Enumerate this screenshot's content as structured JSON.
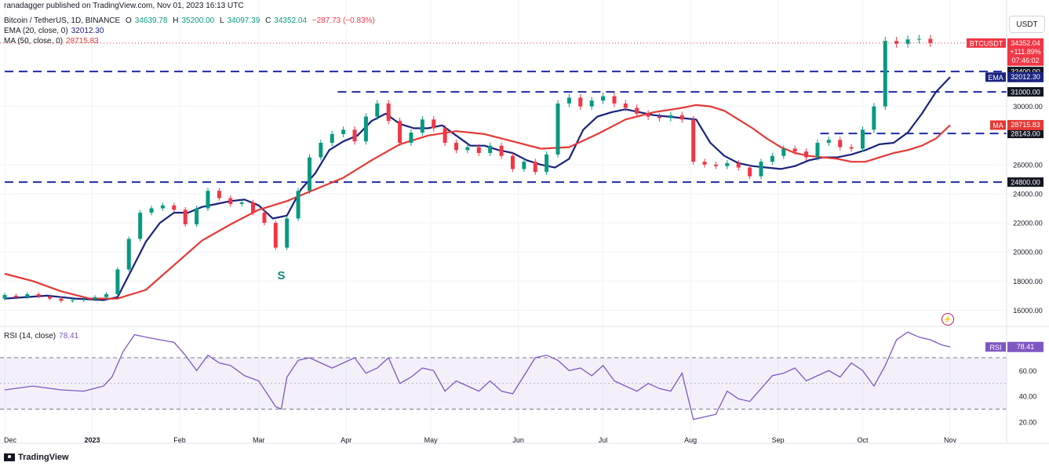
{
  "header": {
    "publisher": "ranadagger published on TradingView.com, Nov 01, 2023 16:13 UTC",
    "symbol": "Bitcoin / TetherUS, 1D, BINANCE",
    "o_label": "O",
    "o_value": "34639.78",
    "h_label": "H",
    "h_value": "35200.00",
    "l_label": "L",
    "l_value": "34097.39",
    "c_label": "C",
    "c_value": "34352.04",
    "change": "−287.73 (−0.83%)",
    "ema_label": "EMA (20, close, 0)",
    "ema_value": "32012.30",
    "ma_label": "MA (50, close, 0)",
    "ma_value": "28715.83",
    "rsi_label": "RSI (14, close)",
    "rsi_value": "78.41"
  },
  "currency_button": "USDT",
  "brand": "TradingView",
  "chart_data": {
    "type": "line",
    "title": "Bitcoin / TetherUS, 1D, BINANCE",
    "price_axis": {
      "ticks": [
        "30000.00",
        "26000.00",
        "24000.00",
        "22000.00",
        "20000.00",
        "18000.00",
        "16000.00"
      ],
      "range": [
        15000,
        35800
      ]
    },
    "rsi_axis": {
      "ticks": [
        "60.00",
        "40.00",
        "20.00"
      ],
      "range": [
        12,
        92
      ],
      "bands": [
        30,
        50,
        70
      ]
    },
    "x_labels": [
      "Dec",
      "2023",
      "Feb",
      "Mar",
      "Apr",
      "May",
      "Jun",
      "Jul",
      "Aug",
      "Sep",
      "Oct",
      "Nov"
    ],
    "x_label_days": [
      0,
      31,
      62,
      90,
      121,
      151,
      182,
      212,
      243,
      274,
      304,
      335
    ],
    "horizontal_levels": [
      {
        "value": 32400,
        "label": "32400.00",
        "x_start_day": 0
      },
      {
        "value": 31000,
        "label": "31000.00",
        "x_start_day": 118
      },
      {
        "value": 28143,
        "label": "28143.00",
        "x_start_day": 289
      },
      {
        "value": 24800,
        "label": "24800.00",
        "x_start_day": 0
      }
    ],
    "badges": [
      {
        "name": "price",
        "label": "BTCUSDT",
        "lines": [
          "34352.04",
          "+111.89%",
          "07:46:02"
        ],
        "value": 34352.04,
        "color": "#f23645"
      },
      {
        "name": "ema",
        "label": "EMA",
        "lines": [
          "32012.30"
        ],
        "value": 32012.3,
        "color": "#1a237e"
      },
      {
        "name": "ma",
        "label": "MA",
        "lines": [
          "28715.83"
        ],
        "value": 28715.83,
        "color": "#e53935"
      },
      {
        "name": "rsi",
        "label": "RSI",
        "lines": [
          "78.41"
        ],
        "value": 78.41,
        "color": "#7e57c2"
      }
    ],
    "annotation": {
      "text": "S",
      "day": 98,
      "price": 19300,
      "color": "#0d8a80"
    },
    "price_series": [
      {
        "name": "BTCUSDT",
        "color": "#089981",
        "days": [
          0,
          15,
          20,
          25,
          35,
          40,
          45,
          50,
          55,
          60,
          65,
          70,
          75,
          80,
          85,
          90,
          95,
          97,
          100,
          105,
          110,
          115,
          120,
          125,
          130,
          135,
          140,
          145,
          150,
          155,
          160,
          165,
          170,
          175,
          180,
          185,
          190,
          195,
          200,
          205,
          210,
          215,
          220,
          225,
          230,
          235,
          240,
          245,
          250,
          255,
          260,
          265,
          270,
          275,
          280,
          285,
          290,
          295,
          300,
          305,
          310,
          315,
          320,
          325,
          330,
          335
        ],
        "values": [
          16900,
          17000,
          16700,
          16700,
          16800,
          17100,
          21000,
          22800,
          23000,
          23100,
          22000,
          23500,
          24600,
          23200,
          23200,
          23000,
          22000,
          20600,
          22000,
          25000,
          26200,
          27900,
          28300,
          27100,
          29700,
          30400,
          29000,
          27300,
          28000,
          28900,
          28000,
          26800,
          27200,
          26900,
          27100,
          25800,
          25700,
          25200,
          27000,
          30500,
          30500,
          30600,
          30200,
          29900,
          29400,
          29100,
          29100,
          29400,
          29200,
          26000,
          26100,
          26000,
          25800,
          25200,
          26400,
          26600,
          27000,
          26200,
          27300,
          27500,
          27000,
          28500,
          30000,
          34600,
          34300,
          34352
        ]
      },
      {
        "name": "EMA (20, close, 0)",
        "color": "#1a237e",
        "days": [
          0,
          15,
          20,
          25,
          35,
          40,
          45,
          50,
          55,
          60,
          65,
          70,
          75,
          80,
          85,
          90,
          95,
          100,
          105,
          110,
          115,
          120,
          125,
          130,
          135,
          140,
          145,
          150,
          155,
          160,
          165,
          170,
          175,
          180,
          185,
          190,
          195,
          200,
          205,
          210,
          215,
          220,
          225,
          230,
          235,
          240,
          245,
          250,
          255,
          260,
          265,
          270,
          275,
          280,
          285,
          290,
          295,
          300,
          305,
          310,
          315,
          320,
          325,
          330,
          335
        ],
        "values": [
          16800,
          17000,
          16900,
          16800,
          16700,
          16900,
          18800,
          20700,
          22000,
          22700,
          22700,
          23100,
          23300,
          23500,
          23600,
          23200,
          22300,
          22500,
          24300,
          25400,
          27000,
          27600,
          28000,
          29000,
          29500,
          28800,
          28500,
          28500,
          28700,
          28000,
          27300,
          27300,
          27000,
          26800,
          26300,
          26000,
          25800,
          26400,
          28400,
          29300,
          29600,
          29800,
          29600,
          29400,
          29300,
          29200,
          29100,
          27500,
          26600,
          26100,
          25900,
          25800,
          25700,
          25900,
          26300,
          26500,
          26500,
          26700,
          27000,
          27400,
          27500,
          28200,
          29500,
          31000,
          32012
        ]
      },
      {
        "name": "MA (50, close, 0)",
        "color": "#e53935",
        "days": [
          0,
          10,
          20,
          30,
          40,
          50,
          60,
          70,
          80,
          90,
          100,
          110,
          120,
          130,
          140,
          150,
          160,
          170,
          180,
          190,
          200,
          210,
          220,
          230,
          240,
          245,
          250,
          255,
          260,
          265,
          270,
          275,
          280,
          285,
          290,
          295,
          300,
          305,
          310,
          315,
          320,
          325,
          330,
          335
        ],
        "values": [
          18500,
          18000,
          17300,
          16800,
          16800,
          17400,
          19100,
          20800,
          21900,
          22900,
          23500,
          24300,
          25100,
          26300,
          27400,
          28000,
          28300,
          28100,
          27600,
          27100,
          27200,
          28100,
          29100,
          29600,
          29900,
          30100,
          30000,
          29700,
          29100,
          28500,
          27800,
          27200,
          26800,
          26600,
          26500,
          26400,
          26200,
          26200,
          26500,
          26800,
          27000,
          27300,
          27800,
          28716
        ]
      }
    ],
    "candles": [
      [
        0,
        16800,
        17050
      ],
      [
        4,
        17000,
        16900
      ],
      [
        8,
        16900,
        17100
      ],
      [
        12,
        17100,
        16950
      ],
      [
        16,
        16950,
        16800
      ],
      [
        20,
        16800,
        16650
      ],
      [
        24,
        16650,
        16700
      ],
      [
        28,
        16700,
        16750
      ],
      [
        32,
        16750,
        16900
      ],
      [
        36,
        16900,
        17100
      ],
      [
        40,
        17100,
        18800
      ],
      [
        44,
        18800,
        20900
      ],
      [
        48,
        20900,
        22700
      ],
      [
        52,
        22700,
        23000
      ],
      [
        56,
        23000,
        23200
      ],
      [
        60,
        23200,
        22900
      ],
      [
        64,
        22900,
        21900
      ],
      [
        68,
        21900,
        23000
      ],
      [
        72,
        23000,
        24200
      ],
      [
        76,
        24200,
        23700
      ],
      [
        80,
        23700,
        23300
      ],
      [
        84,
        23300,
        23400
      ],
      [
        88,
        23400,
        22700
      ],
      [
        92,
        22700,
        22000
      ],
      [
        96,
        22000,
        20300
      ],
      [
        100,
        20300,
        22300
      ],
      [
        104,
        22300,
        24200
      ],
      [
        108,
        24200,
        26500
      ],
      [
        112,
        26500,
        27500
      ],
      [
        116,
        27500,
        28100
      ],
      [
        120,
        28100,
        28400
      ],
      [
        124,
        28400,
        27600
      ],
      [
        128,
        27600,
        29300
      ],
      [
        132,
        29300,
        30200
      ],
      [
        136,
        30200,
        29000
      ],
      [
        140,
        29000,
        27500
      ],
      [
        144,
        27500,
        28200
      ],
      [
        148,
        28200,
        29100
      ],
      [
        152,
        29100,
        28500
      ],
      [
        156,
        28500,
        27500
      ],
      [
        160,
        27500,
        27000
      ],
      [
        164,
        27000,
        27200
      ],
      [
        168,
        27200,
        26800
      ],
      [
        172,
        26800,
        27300
      ],
      [
        176,
        27300,
        26600
      ],
      [
        180,
        26600,
        25700
      ],
      [
        184,
        25700,
        26200
      ],
      [
        188,
        26200,
        25500
      ],
      [
        192,
        25500,
        26700
      ],
      [
        196,
        26700,
        30200
      ],
      [
        200,
        30200,
        30600
      ],
      [
        204,
        30600,
        30000
      ],
      [
        208,
        30000,
        30400
      ],
      [
        212,
        30400,
        30700
      ],
      [
        216,
        30700,
        30200
      ],
      [
        220,
        30200,
        29900
      ],
      [
        224,
        29900,
        29500
      ],
      [
        228,
        29500,
        29300
      ],
      [
        232,
        29300,
        29200
      ],
      [
        236,
        29200,
        29400
      ],
      [
        240,
        29400,
        29100
      ],
      [
        244,
        29100,
        26200
      ],
      [
        248,
        26200,
        26000
      ],
      [
        252,
        26000,
        25900
      ],
      [
        256,
        25900,
        26100
      ],
      [
        260,
        26100,
        25800
      ],
      [
        264,
        25800,
        25200
      ],
      [
        268,
        25200,
        26200
      ],
      [
        272,
        26200,
        26600
      ],
      [
        276,
        26600,
        27100
      ],
      [
        280,
        27100,
        26900
      ],
      [
        284,
        26900,
        26500
      ],
      [
        288,
        26500,
        27500
      ],
      [
        292,
        27500,
        27700
      ],
      [
        296,
        27700,
        27200
      ],
      [
        300,
        27200,
        27100
      ],
      [
        304,
        27100,
        28400
      ],
      [
        308,
        28400,
        30000
      ],
      [
        312,
        30000,
        34500
      ],
      [
        316,
        34500,
        34300
      ],
      [
        320,
        34300,
        34600
      ],
      [
        324,
        34600,
        34640
      ],
      [
        328,
        34640,
        34352
      ]
    ],
    "rsi_series": {
      "name": "RSI (14, close)",
      "color": "#7e57c2",
      "days": [
        0,
        10,
        20,
        28,
        35,
        38,
        42,
        46,
        50,
        55,
        60,
        64,
        68,
        72,
        76,
        80,
        85,
        90,
        96,
        98,
        100,
        104,
        108,
        112,
        116,
        120,
        124,
        128,
        132,
        136,
        140,
        144,
        148,
        152,
        156,
        160,
        164,
        168,
        172,
        176,
        180,
        184,
        188,
        192,
        196,
        200,
        204,
        208,
        212,
        216,
        220,
        224,
        228,
        232,
        236,
        240,
        244,
        248,
        252,
        256,
        260,
        264,
        268,
        272,
        276,
        280,
        284,
        288,
        292,
        296,
        300,
        304,
        308,
        312,
        316,
        320,
        324,
        328,
        332,
        335
      ],
      "values": [
        45,
        48,
        45,
        44,
        48,
        55,
        75,
        88,
        86,
        84,
        82,
        72,
        60,
        72,
        66,
        64,
        56,
        52,
        32,
        30,
        55,
        68,
        70,
        66,
        62,
        66,
        70,
        58,
        62,
        70,
        50,
        55,
        62,
        60,
        44,
        52,
        48,
        44,
        52,
        44,
        42,
        56,
        70,
        72,
        68,
        60,
        62,
        56,
        64,
        52,
        48,
        44,
        50,
        46,
        44,
        58,
        22,
        24,
        26,
        44,
        38,
        36,
        46,
        56,
        58,
        62,
        52,
        56,
        60,
        55,
        66,
        60,
        48,
        64,
        84,
        90,
        86,
        84,
        80,
        78.41
      ]
    }
  }
}
